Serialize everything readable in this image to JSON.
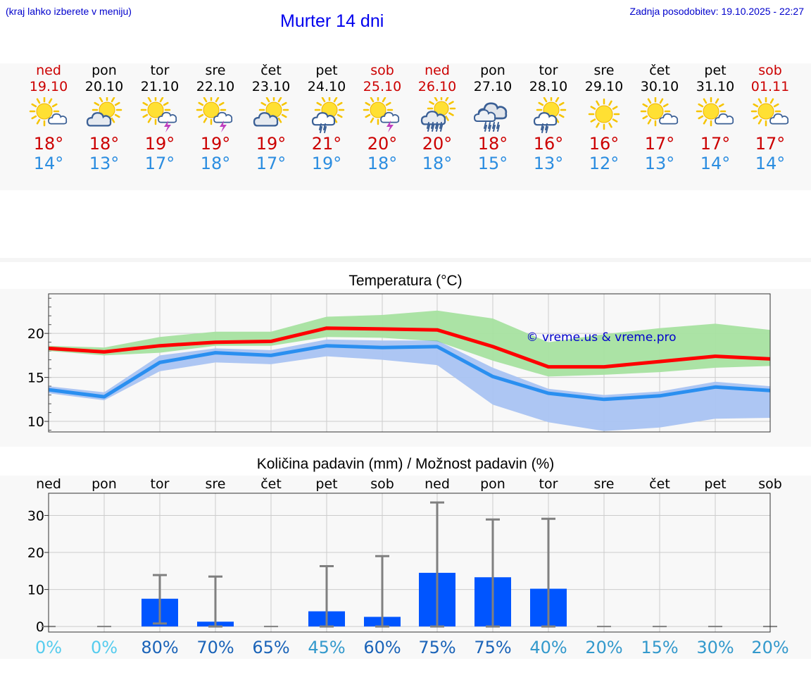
{
  "header": {
    "left_note": "(kraj lahko izberete v meniju)",
    "title": "Murter 14 dni",
    "updated": "Zadnja posodobitev: 19.10.2025 - 22:27"
  },
  "days": [
    {
      "name": "ned",
      "date": "19.10",
      "weekend": true,
      "icon": "sun-cloud-icon",
      "tmax": "18°",
      "tmin": "14°"
    },
    {
      "name": "pon",
      "date": "20.10",
      "weekend": false,
      "icon": "sun-behind-cloud-icon",
      "tmax": "18°",
      "tmin": "13°"
    },
    {
      "name": "tor",
      "date": "21.10",
      "weekend": false,
      "icon": "sun-thunder-icon",
      "tmax": "19°",
      "tmin": "17°"
    },
    {
      "name": "sre",
      "date": "22.10",
      "weekend": false,
      "icon": "sun-thunder-icon",
      "tmax": "19°",
      "tmin": "18°"
    },
    {
      "name": "čet",
      "date": "23.10",
      "weekend": false,
      "icon": "sun-behind-cloud-icon",
      "tmax": "19°",
      "tmin": "17°"
    },
    {
      "name": "pet",
      "date": "24.10",
      "weekend": false,
      "icon": "sun-cloud-rain-icon",
      "tmax": "21°",
      "tmin": "19°"
    },
    {
      "name": "sob",
      "date": "25.10",
      "weekend": true,
      "icon": "sun-thunder-icon",
      "tmax": "20°",
      "tmin": "18°"
    },
    {
      "name": "ned",
      "date": "26.10",
      "weekend": true,
      "icon": "sun-cloud-heavy-rain-icon",
      "tmax": "20°",
      "tmin": "18°"
    },
    {
      "name": "pon",
      "date": "27.10",
      "weekend": false,
      "icon": "cloud-heavy-rain-icon",
      "tmax": "18°",
      "tmin": "15°"
    },
    {
      "name": "tor",
      "date": "28.10",
      "weekend": false,
      "icon": "sun-cloud-rain-icon",
      "tmax": "16°",
      "tmin": "13°"
    },
    {
      "name": "sre",
      "date": "29.10",
      "weekend": false,
      "icon": "sun-icon",
      "tmax": "16°",
      "tmin": "12°"
    },
    {
      "name": "čet",
      "date": "30.10",
      "weekend": false,
      "icon": "sun-cloud-icon",
      "tmax": "17°",
      "tmin": "13°"
    },
    {
      "name": "pet",
      "date": "31.10",
      "weekend": false,
      "icon": "sun-cloud-icon",
      "tmax": "17°",
      "tmin": "14°"
    },
    {
      "name": "sob",
      "date": "01.11",
      "weekend": true,
      "icon": "sun-cloud-icon",
      "tmax": "17°",
      "tmin": "14°"
    }
  ],
  "colors": {
    "max_text": "#cc0000",
    "min_text": "#2b8de0",
    "max_line": "#ff0000",
    "min_line": "#2a8ff0",
    "max_band": "#a6e2a0",
    "min_band": "#a9c3f2",
    "overlap_band": "#7cc6a4",
    "bar": "#0055ff",
    "err": "#808080",
    "watermark": "#0000cc"
  },
  "chart_data": [
    {
      "type": "line",
      "title": "Temperatura (°C)",
      "watermark": "© vreme.us & vreme.pro",
      "x": [
        0,
        1,
        2,
        3,
        4,
        5,
        6,
        7,
        8,
        9,
        10,
        11,
        12,
        13
      ],
      "ylim": [
        8.8,
        24.5
      ],
      "yticks": [
        10,
        15,
        20
      ],
      "series": [
        {
          "name": "max",
          "values": [
            18.3,
            17.9,
            18.6,
            19.0,
            19.1,
            20.6,
            20.5,
            20.4,
            18.5,
            16.2,
            16.2,
            16.8,
            17.4,
            17.1
          ]
        },
        {
          "name": "min",
          "values": [
            13.6,
            12.8,
            16.7,
            17.8,
            17.5,
            18.6,
            18.4,
            18.5,
            15.1,
            13.2,
            12.5,
            12.9,
            13.9,
            13.5
          ]
        }
      ],
      "bands": [
        {
          "name": "max_range",
          "low": [
            18.0,
            17.5,
            17.8,
            18.6,
            18.6,
            19.6,
            19.5,
            19.1,
            16.9,
            15.1,
            15.3,
            15.6,
            16.1,
            16.3
          ],
          "high": [
            18.6,
            18.4,
            19.6,
            20.2,
            20.2,
            21.9,
            22.1,
            22.6,
            21.7,
            19.0,
            19.9,
            20.6,
            21.1,
            20.4
          ]
        },
        {
          "name": "min_range",
          "low": [
            13.2,
            12.4,
            15.7,
            16.7,
            16.5,
            17.4,
            17.0,
            16.4,
            11.9,
            9.9,
            8.9,
            9.3,
            10.3,
            10.4
          ],
          "high": [
            14.0,
            13.3,
            17.5,
            18.3,
            18.1,
            19.3,
            19.2,
            19.2,
            16.1,
            13.7,
            13.0,
            13.4,
            14.5,
            14.0
          ]
        }
      ]
    },
    {
      "type": "bar",
      "title": "Količina padavin (mm) / Možnost padavin (%)",
      "categories": [
        "ned",
        "pon",
        "tor",
        "sre",
        "čet",
        "pet",
        "sob",
        "ned",
        "pon",
        "tor",
        "sre",
        "čet",
        "pet",
        "sob"
      ],
      "values": [
        0,
        0,
        7.5,
        1.3,
        0,
        4.1,
        2.6,
        14.5,
        13.3,
        10.2,
        0,
        0,
        0,
        0
      ],
      "error_high": [
        0,
        0,
        13.9,
        13.5,
        0,
        16.3,
        19,
        33.5,
        28.9,
        29.1,
        0,
        0,
        0,
        0
      ],
      "error_low": [
        0,
        0,
        0.8,
        0,
        0,
        0,
        0,
        0,
        0,
        0,
        0,
        0,
        0,
        0
      ],
      "ylim": [
        -1.5,
        36
      ],
      "yticks": [
        0,
        10,
        20,
        30
      ],
      "probability": [
        "0%",
        "0%",
        "80%",
        "70%",
        "65%",
        "45%",
        "60%",
        "75%",
        "75%",
        "40%",
        "20%",
        "15%",
        "30%",
        "20%"
      ],
      "probability_colors": [
        "#55ccee",
        "#55ccee",
        "#1a63b8",
        "#1a63b8",
        "#1a63b8",
        "#3399cc",
        "#1a63b8",
        "#1a63b8",
        "#1a63b8",
        "#3399cc",
        "#3399cc",
        "#3399cc",
        "#3399cc",
        "#3399cc"
      ]
    }
  ]
}
